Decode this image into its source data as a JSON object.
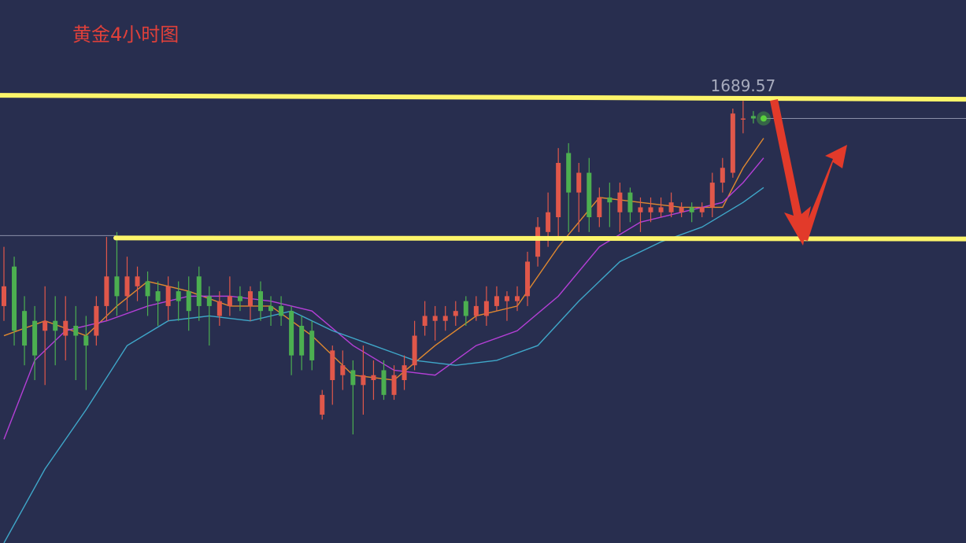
{
  "chart_data": {
    "type": "candlestick",
    "title": "黄金4小时图",
    "ylim": [
      1600,
      1710
    ],
    "up_color": "#e0574a",
    "down_color": "#4caf50",
    "open": [
      1648,
      1656,
      1647,
      1645,
      1643,
      1645,
      1642,
      1644,
      1642,
      1642,
      1648,
      1654,
      1650,
      1652,
      1653,
      1651,
      1648,
      1651,
      1651,
      1654,
      1650,
      1646,
      1648,
      1650,
      1648,
      1651,
      1648,
      1648,
      1647,
      1644,
      1643,
      1626,
      1633,
      1634,
      1635,
      1632,
      1633,
      1635,
      1630,
      1633,
      1636,
      1644,
      1645,
      1645,
      1646,
      1649,
      1646,
      1646,
      1648,
      1649,
      1649,
      1650,
      1658,
      1663,
      1666,
      1679,
      1671,
      1675,
      1666,
      1670,
      1667,
      1671,
      1667,
      1667,
      1667,
      1667,
      1667,
      1668,
      1667,
      1668,
      1673,
      1675,
      1686,
      1686.5,
      1686
    ],
    "high": [
      1660,
      1658,
      1650,
      1648,
      1652,
      1650,
      1650,
      1648,
      1646,
      1650,
      1662,
      1663,
      1658,
      1656,
      1655,
      1653,
      1654,
      1653,
      1654,
      1656,
      1652,
      1651,
      1654,
      1652,
      1652,
      1653,
      1650,
      1650,
      1648,
      1646,
      1645,
      1631,
      1640,
      1639,
      1637,
      1640,
      1637,
      1637,
      1636,
      1638,
      1645,
      1649,
      1648,
      1648,
      1649,
      1650,
      1650,
      1652,
      1652,
      1651,
      1652,
      1659,
      1666,
      1671,
      1680,
      1681,
      1677,
      1678,
      1672,
      1673,
      1673,
      1672,
      1670,
      1670,
      1670,
      1671,
      1669,
      1669,
      1669,
      1675,
      1678,
      1688,
      1689.57,
      1687.5,
      1686.5
    ],
    "low": [
      1645,
      1640,
      1636,
      1633,
      1632,
      1636,
      1637,
      1633,
      1631,
      1640,
      1645,
      1646,
      1647,
      1649,
      1646,
      1644,
      1645,
      1645,
      1643,
      1645,
      1640,
      1644,
      1646,
      1647,
      1645,
      1645,
      1644,
      1644,
      1634,
      1635,
      1635,
      1625,
      1628,
      1631,
      1622,
      1626,
      1629,
      1629,
      1629,
      1631,
      1635,
      1642,
      1641,
      1643,
      1644,
      1644,
      1645,
      1644,
      1647,
      1645,
      1647,
      1648,
      1656,
      1660,
      1662,
      1663,
      1663,
      1663,
      1664,
      1664,
      1663,
      1665,
      1663,
      1665,
      1666,
      1666,
      1666,
      1665,
      1666,
      1666,
      1671,
      1674,
      1683,
      1685,
      1685.5
    ],
    "close": [
      1652,
      1643,
      1640,
      1638,
      1645,
      1643,
      1645,
      1642,
      1640,
      1648,
      1654,
      1650,
      1654,
      1654,
      1650,
      1649,
      1652,
      1649,
      1647,
      1648,
      1648,
      1649,
      1650,
      1649,
      1651,
      1647,
      1647,
      1646,
      1638,
      1638,
      1637,
      1630,
      1639,
      1636,
      1632,
      1634,
      1634,
      1630,
      1634,
      1636,
      1642,
      1646,
      1646,
      1646,
      1647,
      1646,
      1648,
      1649,
      1650,
      1650,
      1650,
      1657,
      1664,
      1667,
      1677,
      1671,
      1675,
      1666,
      1670,
      1669,
      1671,
      1667,
      1668,
      1668,
      1668,
      1669,
      1668,
      1667,
      1668,
      1673,
      1676,
      1687,
      1686,
      1686,
      1686
    ],
    "series": [
      {
        "color": "#e0892f",
        "x": [
          0,
          4,
          8,
          11,
          14,
          18,
          22,
          26,
          30,
          34,
          38,
          42,
          46,
          50,
          54,
          58,
          62,
          66,
          70,
          72,
          74
        ],
        "values": [
          1642,
          1645,
          1642,
          1648,
          1653,
          1651,
          1648,
          1648,
          1642,
          1634,
          1633,
          1640,
          1646,
          1648,
          1660,
          1670,
          1669,
          1668,
          1668,
          1676,
          1682
        ]
      },
      {
        "color": "#b43fd6",
        "x": [
          0,
          3,
          6,
          10,
          14,
          18,
          22,
          26,
          30,
          34,
          38,
          42,
          46,
          50,
          54,
          58,
          62,
          66,
          70,
          72,
          74
        ],
        "values": [
          1621,
          1637,
          1643,
          1645,
          1648,
          1650,
          1650,
          1649,
          1647,
          1640,
          1635,
          1634,
          1640,
          1643,
          1650,
          1660,
          1665,
          1667,
          1669,
          1673,
          1678
        ]
      },
      {
        "color": "#3fa7c9",
        "x": [
          0,
          4,
          8,
          12,
          16,
          20,
          24,
          28,
          32,
          36,
          40,
          44,
          48,
          52,
          56,
          60,
          64,
          68,
          72,
          74
        ],
        "values": [
          1600,
          1615,
          1627,
          1640,
          1645,
          1646,
          1645,
          1647,
          1643,
          1640,
          1637,
          1636,
          1637,
          1640,
          1649,
          1657,
          1661,
          1664,
          1669,
          1672
        ]
      }
    ],
    "levels": [
      {
        "start": 1690.7,
        "end": 1689.9,
        "color": "#fdf56a"
      },
      {
        "start": 1661.8,
        "end": 1661.6,
        "color": "#fdf56a"
      }
    ]
  }
}
